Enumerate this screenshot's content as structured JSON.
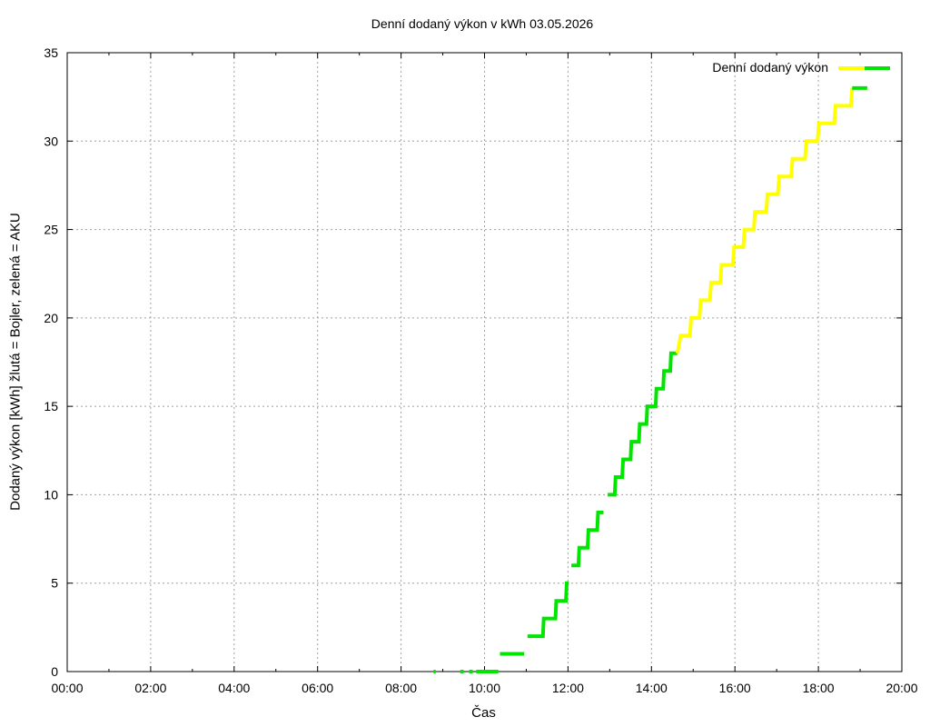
{
  "chart_data": {
    "type": "line",
    "title": "Denní dodaný výkon v kWh 03.05.2026",
    "xlabel": "Čas",
    "ylabel": "Dodaný výkon [kWh]  žlutá = Bojler, zelená = AKU",
    "x_unit": "hours",
    "xlim": [
      0,
      20
    ],
    "ylim": [
      0,
      35
    ],
    "x_ticks": [
      "00:00",
      "02:00",
      "04:00",
      "06:00",
      "08:00",
      "10:00",
      "12:00",
      "14:00",
      "16:00",
      "18:00",
      "20:00"
    ],
    "y_ticks": [
      "0",
      "5",
      "10",
      "15",
      "20",
      "25",
      "30",
      "35"
    ],
    "grid": true,
    "legend_position": "top-right",
    "legend": {
      "label": "Denní dodaný výkon",
      "colors": [
        "#ffff00",
        "#00e600"
      ]
    },
    "colors": {
      "Bojler": "#ffff00",
      "AKU": "#00e600"
    },
    "series": [
      {
        "segments": [
          {
            "color": "AKU",
            "points": [
              [
                8.78,
                0
              ],
              [
                8.83,
                0
              ]
            ]
          },
          {
            "color": "AKU",
            "points": [
              [
                9.42,
                0
              ],
              [
                9.5,
                0
              ]
            ]
          },
          {
            "color": "AKU",
            "points": [
              [
                9.63,
                0
              ],
              [
                9.72,
                0
              ]
            ]
          },
          {
            "color": "AKU",
            "points": [
              [
                9.8,
                0
              ],
              [
                10.33,
                0
              ]
            ]
          },
          {
            "color": "AKU",
            "points": [
              [
                10.37,
                1
              ],
              [
                10.95,
                1
              ]
            ]
          },
          {
            "color": "AKU",
            "points": [
              [
                11.03,
                2
              ],
              [
                11.4,
                2
              ],
              [
                11.42,
                3
              ],
              [
                11.7,
                3
              ],
              [
                11.72,
                4
              ],
              [
                11.95,
                4
              ],
              [
                11.97,
                5
              ],
              [
                12.02,
                5
              ]
            ]
          },
          {
            "color": "AKU",
            "points": [
              [
                12.08,
                6
              ],
              [
                12.25,
                6
              ],
              [
                12.27,
                7
              ],
              [
                12.47,
                7
              ],
              [
                12.49,
                8
              ],
              [
                12.7,
                8
              ],
              [
                12.72,
                9
              ],
              [
                12.85,
                9
              ]
            ]
          },
          {
            "color": "AKU",
            "points": [
              [
                12.95,
                10
              ],
              [
                13.12,
                10
              ],
              [
                13.14,
                11
              ],
              [
                13.3,
                11
              ],
              [
                13.32,
                12
              ],
              [
                13.5,
                12
              ],
              [
                13.52,
                13
              ],
              [
                13.7,
                13
              ],
              [
                13.72,
                14
              ],
              [
                13.88,
                14
              ],
              [
                13.9,
                15
              ],
              [
                14.1,
                15
              ],
              [
                14.12,
                16
              ],
              [
                14.28,
                16
              ],
              [
                14.3,
                17
              ],
              [
                14.45,
                17
              ],
              [
                14.47,
                18
              ],
              [
                14.62,
                18
              ]
            ]
          },
          {
            "color": "Bojler",
            "points": [
              [
                14.62,
                18
              ],
              [
                14.7,
                19
              ],
              [
                14.92,
                19
              ],
              [
                14.95,
                20
              ],
              [
                15.15,
                20
              ],
              [
                15.18,
                21
              ],
              [
                15.4,
                21
              ],
              [
                15.43,
                22
              ],
              [
                15.65,
                22
              ],
              [
                15.68,
                23
              ],
              [
                15.95,
                23
              ],
              [
                15.98,
                24
              ],
              [
                16.2,
                24
              ],
              [
                16.23,
                25
              ],
              [
                16.45,
                25
              ],
              [
                16.48,
                26
              ],
              [
                16.75,
                26
              ],
              [
                16.78,
                27
              ],
              [
                17.03,
                27
              ],
              [
                17.06,
                28
              ],
              [
                17.35,
                28
              ],
              [
                17.38,
                29
              ],
              [
                17.68,
                29
              ],
              [
                17.71,
                30
              ],
              [
                17.98,
                30
              ],
              [
                18.01,
                31
              ],
              [
                18.38,
                31
              ],
              [
                18.41,
                32
              ],
              [
                18.78,
                32
              ],
              [
                18.81,
                33
              ]
            ]
          },
          {
            "color": "AKU",
            "points": [
              [
                18.81,
                33
              ],
              [
                19.17,
                33
              ]
            ]
          }
        ]
      }
    ]
  }
}
